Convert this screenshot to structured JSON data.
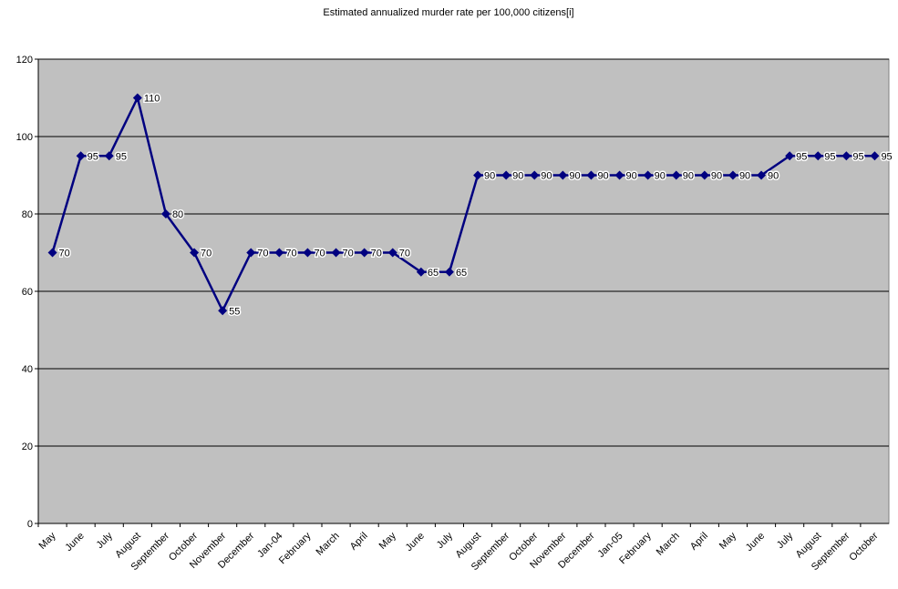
{
  "chart_data": {
    "type": "line",
    "title": "Estimated annualized murder rate per 100,000 citizens[i]",
    "categories": [
      "May",
      "June",
      "July",
      "August",
      "September",
      "October",
      "November",
      "December",
      "Jan-04",
      "February",
      "March",
      "April",
      "May",
      "June",
      "July",
      "August",
      "September",
      "October",
      "November",
      "December",
      "Jan-05",
      "February",
      "March",
      "April",
      "May",
      "June",
      "July",
      "August",
      "September",
      "October"
    ],
    "values": [
      70,
      95,
      95,
      110,
      80,
      70,
      55,
      70,
      70,
      70,
      70,
      70,
      70,
      65,
      65,
      90,
      90,
      90,
      90,
      90,
      90,
      90,
      90,
      90,
      90,
      90,
      95,
      95,
      95,
      95
    ],
    "color": "#000080",
    "ylim": [
      0,
      120
    ],
    "yticks": [
      0,
      20,
      40,
      60,
      80,
      100,
      120
    ],
    "grid": true
  }
}
